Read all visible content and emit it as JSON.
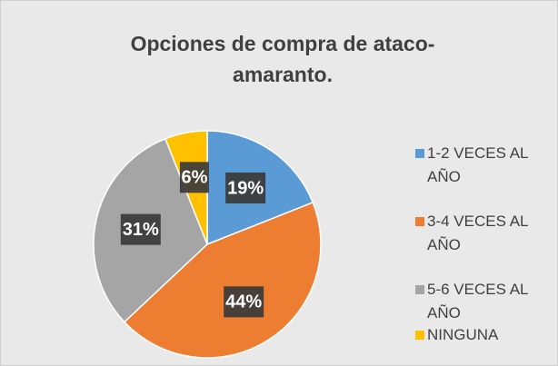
{
  "chart_data": {
    "type": "pie",
    "title": "Opciones de compra de ataco-amaranto.",
    "categories": [
      "1-2 VECES AL AÑO",
      "3-4 VECES AL AÑO",
      "5-6 VECES AL AÑO",
      "NINGUNA"
    ],
    "values": [
      19,
      44,
      31,
      6
    ],
    "value_labels": [
      "19%",
      "44%",
      "31%",
      "6%"
    ],
    "colors": [
      "#5b9bd5",
      "#ed7d31",
      "#a5a5a5",
      "#ffc000"
    ],
    "legend": "right"
  }
}
